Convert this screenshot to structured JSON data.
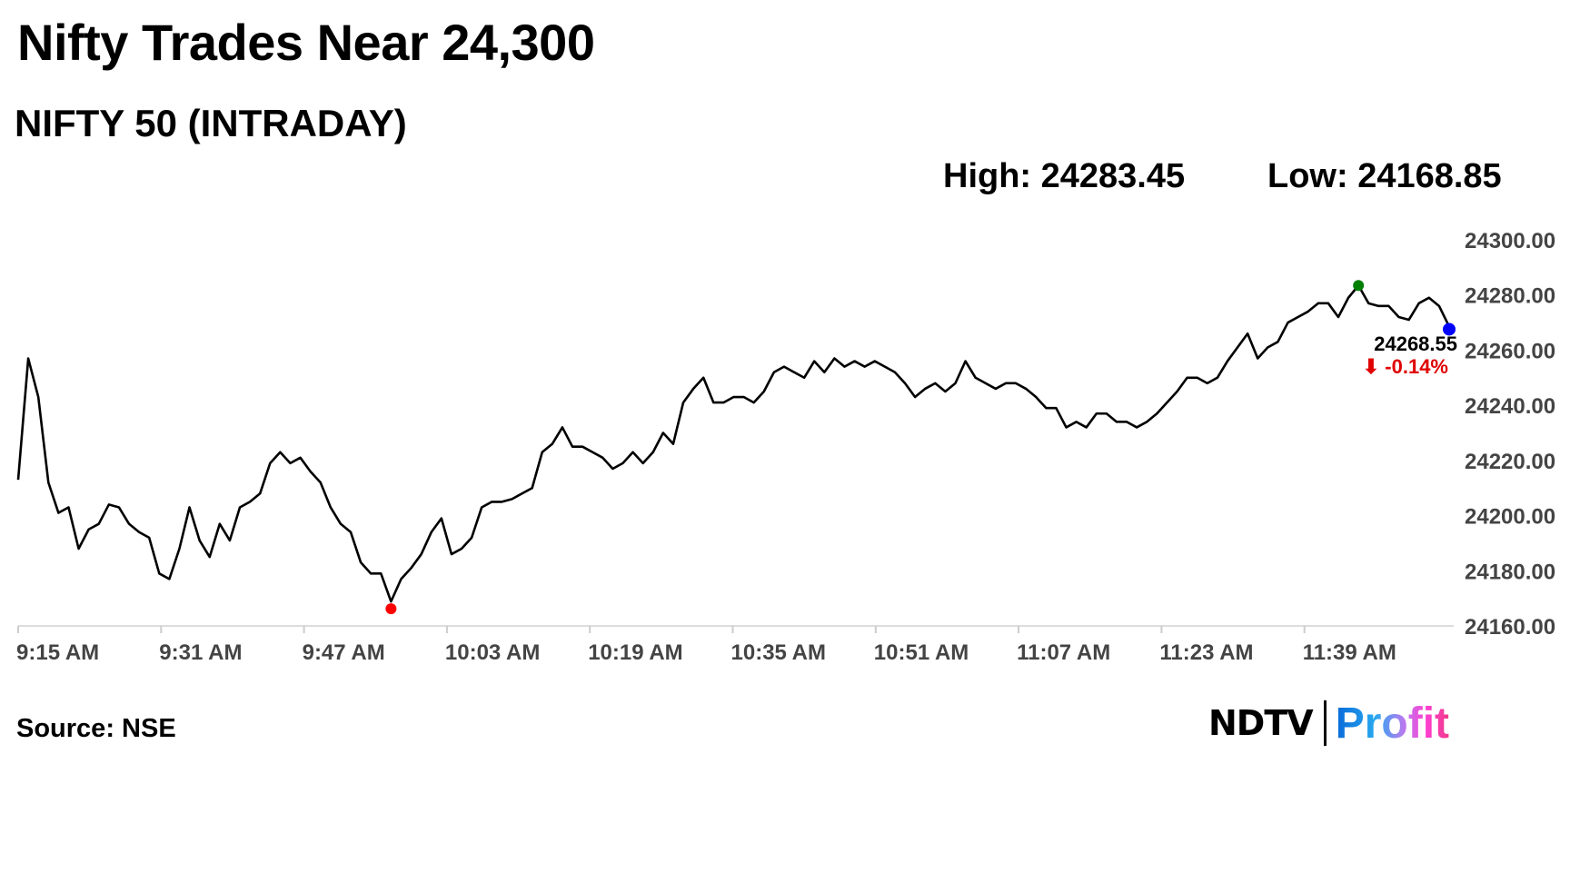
{
  "headline": "Nifty Trades Near 24,300",
  "chart_data": {
    "type": "line",
    "title": "NIFTY 50 (INTRADAY)",
    "high_label": "High: 24283.45",
    "low_label": "Low: 24168.85",
    "xlabel": "",
    "ylabel": "",
    "xlim": [
      "9:15 AM",
      "11:55 AM"
    ],
    "ylim": [
      24160,
      24300
    ],
    "grid": false,
    "y_ticks": [
      "24300.00",
      "24280.00",
      "24260.00",
      "24240.00",
      "24220.00",
      "24200.00",
      "24180.00",
      "24160.00"
    ],
    "x_ticks": [
      "9:15 AM",
      "9:31 AM",
      "9:47 AM",
      "10:03 AM",
      "10:19 AM",
      "10:35 AM",
      "10:51 AM",
      "11:07 AM",
      "11:23 AM",
      "11:39 AM"
    ],
    "values": [
      24213,
      24257,
      24243,
      24212,
      24201,
      24203,
      24188,
      24195,
      24197,
      24204,
      24203,
      24197,
      24194,
      24192,
      24179,
      24177,
      24188,
      24203,
      24191,
      24185,
      24197,
      24191,
      24203,
      24205,
      24208,
      24219,
      24223,
      24219,
      24221,
      24216,
      24212,
      24203,
      24197,
      24194,
      24183,
      24179,
      24179,
      24168.85,
      24177,
      24181,
      24186,
      24194,
      24199,
      24186,
      24188,
      24192,
      24203,
      24205,
      24205,
      24206,
      24208,
      24210,
      24223,
      24226,
      24232,
      24225,
      24225,
      24223,
      24221,
      24217,
      24219,
      24223,
      24219,
      24223,
      24230,
      24226,
      24241,
      24246,
      24250,
      24241,
      24241,
      24243,
      24243,
      24241,
      24245,
      24252,
      24254,
      24252,
      24250,
      24256,
      24252,
      24257,
      24254,
      24256,
      24254,
      24256,
      24254,
      24252,
      24248,
      24243,
      24246,
      24248,
      24245,
      24248,
      24256,
      24250,
      24248,
      24246,
      24248,
      24248,
      24246,
      24243,
      24239,
      24239,
      24232,
      24234,
      24232,
      24237,
      24237,
      24234,
      24234,
      24232,
      24234,
      24237,
      24241,
      24245,
      24250,
      24250,
      24248,
      24250,
      24256,
      24261,
      24266,
      24257,
      24261,
      24263,
      24270,
      24272,
      24274,
      24277,
      24277,
      24272,
      24279,
      24283.45,
      24277,
      24276,
      24276,
      24272,
      24271,
      24277,
      24279,
      24276,
      24268.55
    ],
    "line_color": "#000000",
    "markers": {
      "low": {
        "value": 24168.85,
        "color": "#ff0000"
      },
      "high": {
        "value": 24283.45,
        "color": "#008000"
      },
      "last": {
        "value": 24268.55,
        "color": "#0000ff"
      }
    },
    "last_label": "24268.55",
    "change_label": "⬇ -0.14%",
    "change_color": "#e00000"
  },
  "source": "Source: NSE",
  "logo": {
    "ndtv": "NDTV",
    "profit": "Profit"
  }
}
